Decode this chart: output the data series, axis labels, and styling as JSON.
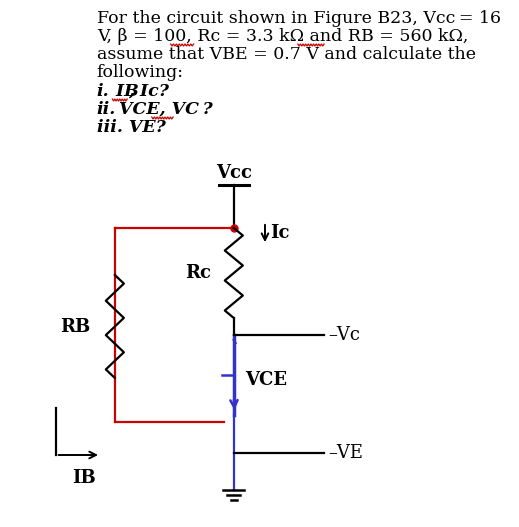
{
  "text_line1": "For the circuit shown in Figure B23, Vcc = 16",
  "text_line2": "V, β = 100, Rc = 3.3 kΩ and RB = 560 kΩ,",
  "text_line3": "assume that VBE = 0.7 V and calculate the",
  "text_line4": "following:",
  "italic_line1_a": "i.",
  "italic_line1_b": " IB",
  "italic_line1_c": ", Ic?",
  "italic_line2_a": "ii.",
  "italic_line2_b": " VCE, VC ?",
  "italic_line3": "iii. VE?",
  "vcc_label": "Vcc",
  "ic_label": "Ic",
  "rc_label": "Rc",
  "rb_label": "RB",
  "vc_label": "Vc",
  "vce_label": "VCE",
  "ib_label": "IB",
  "ve_label": "VE",
  "red": "#cc0000",
  "blue": "#3333cc",
  "black": "#000000",
  "fs_main": 12.5,
  "fs_circuit": 13,
  "serif": "DejaVu Serif"
}
